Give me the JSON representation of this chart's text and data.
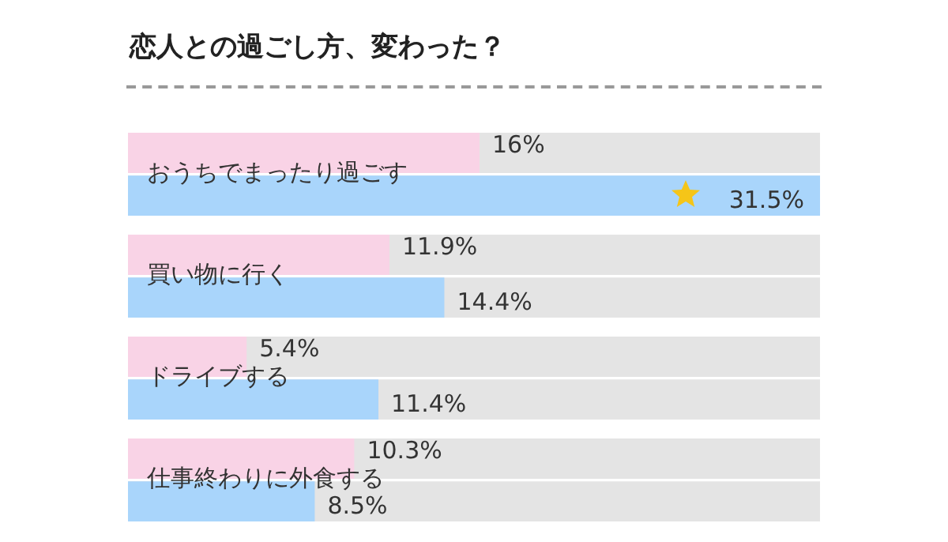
{
  "chart_data": {
    "type": "bar",
    "orientation": "horizontal",
    "title": "恋人との過ごし方、変わった？",
    "categories": [
      "おうちでまったり過ごす",
      "買い物に行く",
      "ドライブする",
      "仕事終わりに外食する"
    ],
    "series": [
      {
        "color": "#f9d3e6",
        "values": [
          16,
          11.9,
          5.4,
          10.3
        ],
        "value_labels": [
          "16%",
          "11.9%",
          "5.4%",
          "10.3%"
        ]
      },
      {
        "color": "#a9d5fb",
        "values": [
          31.5,
          14.4,
          11.4,
          8.5
        ],
        "value_labels": [
          "31.5%",
          "14.4%",
          "11.4%",
          "8.5%"
        ]
      }
    ],
    "tick_labels": false
  }
}
